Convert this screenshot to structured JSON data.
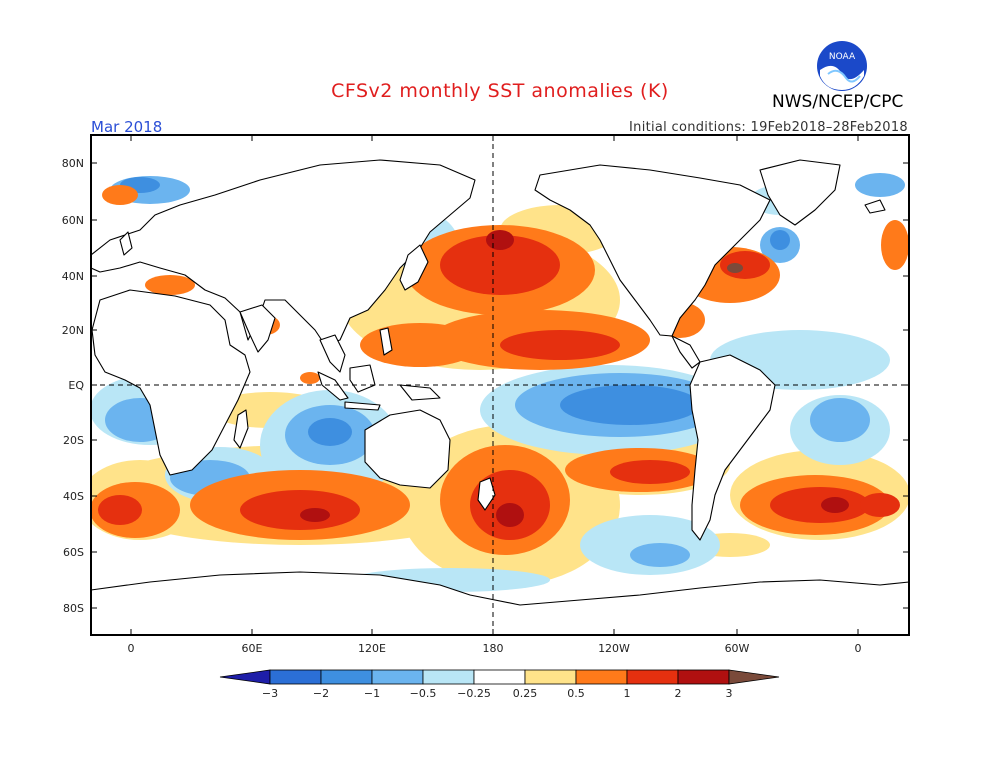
{
  "title": "CFSv2 monthly SST anomalies (K)",
  "org": "NWS/NCEP/CPC",
  "logo_text": "NOAA",
  "month": "Mar 2018",
  "initial_conditions": "Initial conditions: 19Feb2018–28Feb2018",
  "lat_labels": [
    "80N",
    "60N",
    "40N",
    "20N",
    "EQ",
    "20S",
    "40S",
    "60S",
    "80S"
  ],
  "lon_labels": [
    "0",
    "60E",
    "120E",
    "180",
    "120W",
    "60W",
    "0"
  ],
  "colorbar": {
    "labels": [
      "−3",
      "−2",
      "−1",
      "−0.5",
      "−0.25",
      "0.25",
      "0.5",
      "1",
      "2",
      "3"
    ],
    "colors": [
      "#1e1ea8",
      "#2b6fd6",
      "#3e8fe0",
      "#6bb4ef",
      "#b9e6f6",
      "#ffffff",
      "#ffe38a",
      "#ff7a1a",
      "#e5300f",
      "#b01010",
      "#7a4a3a"
    ]
  },
  "colors": {
    "title": "#e01e1e",
    "month": "#2b4fd6",
    "land": "#ffffff",
    "coast": "#000000"
  }
}
